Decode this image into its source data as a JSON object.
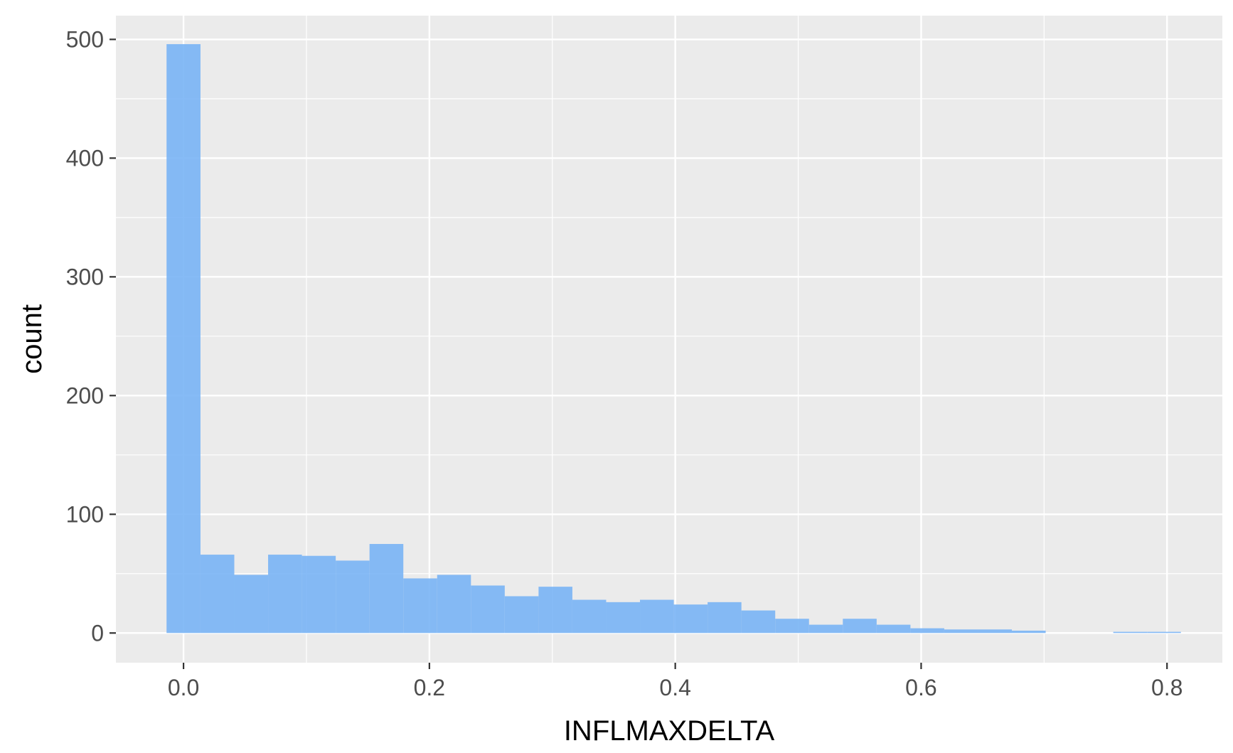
{
  "chart_data": {
    "type": "bar",
    "subtype": "histogram",
    "xlabel": "INFLMAXDELTA",
    "ylabel": "count",
    "xlim": [
      -0.055,
      0.845
    ],
    "ylim": [
      -25,
      520
    ],
    "x_ticks": [
      0.0,
      0.2,
      0.4,
      0.6,
      0.8
    ],
    "x_tick_labels": [
      "0.0",
      "0.2",
      "0.4",
      "0.6",
      "0.8"
    ],
    "y_ticks": [
      0,
      100,
      200,
      300,
      400,
      500
    ],
    "y_tick_labels": [
      "0",
      "100",
      "200",
      "300",
      "400",
      "500"
    ],
    "bin_width": 0.0275,
    "bins": [
      {
        "x0": -0.0138,
        "x1": 0.0138,
        "count": 496
      },
      {
        "x0": 0.0138,
        "x1": 0.0413,
        "count": 66
      },
      {
        "x0": 0.0413,
        "x1": 0.0688,
        "count": 49
      },
      {
        "x0": 0.0688,
        "x1": 0.0963,
        "count": 66
      },
      {
        "x0": 0.0963,
        "x1": 0.1238,
        "count": 65
      },
      {
        "x0": 0.1238,
        "x1": 0.1513,
        "count": 61
      },
      {
        "x0": 0.1513,
        "x1": 0.1788,
        "count": 75
      },
      {
        "x0": 0.1788,
        "x1": 0.2063,
        "count": 46
      },
      {
        "x0": 0.2063,
        "x1": 0.2338,
        "count": 49
      },
      {
        "x0": 0.2338,
        "x1": 0.2613,
        "count": 40
      },
      {
        "x0": 0.2613,
        "x1": 0.2888,
        "count": 31
      },
      {
        "x0": 0.2888,
        "x1": 0.3163,
        "count": 39
      },
      {
        "x0": 0.3163,
        "x1": 0.3438,
        "count": 28
      },
      {
        "x0": 0.3438,
        "x1": 0.3713,
        "count": 26
      },
      {
        "x0": 0.3713,
        "x1": 0.3988,
        "count": 28
      },
      {
        "x0": 0.3988,
        "x1": 0.4263,
        "count": 24
      },
      {
        "x0": 0.4263,
        "x1": 0.4538,
        "count": 26
      },
      {
        "x0": 0.4538,
        "x1": 0.4813,
        "count": 19
      },
      {
        "x0": 0.4813,
        "x1": 0.5088,
        "count": 12
      },
      {
        "x0": 0.5088,
        "x1": 0.5363,
        "count": 7
      },
      {
        "x0": 0.5363,
        "x1": 0.5638,
        "count": 12
      },
      {
        "x0": 0.5638,
        "x1": 0.5913,
        "count": 7
      },
      {
        "x0": 0.5913,
        "x1": 0.6188,
        "count": 4
      },
      {
        "x0": 0.6188,
        "x1": 0.6463,
        "count": 3
      },
      {
        "x0": 0.6463,
        "x1": 0.6738,
        "count": 3
      },
      {
        "x0": 0.6738,
        "x1": 0.7013,
        "count": 2
      },
      {
        "x0": 0.7013,
        "x1": 0.7288,
        "count": 0
      },
      {
        "x0": 0.7288,
        "x1": 0.7563,
        "count": 0
      },
      {
        "x0": 0.7563,
        "x1": 0.7838,
        "count": 1
      },
      {
        "x0": 0.7838,
        "x1": 0.8113,
        "count": 1
      }
    ],
    "grid": true,
    "colors": {
      "bar_fill": "#79b4f5",
      "panel_background": "#ebebeb",
      "grid": "#ffffff",
      "tick_text": "#4d4d4d",
      "tick_mark": "#333333"
    }
  }
}
